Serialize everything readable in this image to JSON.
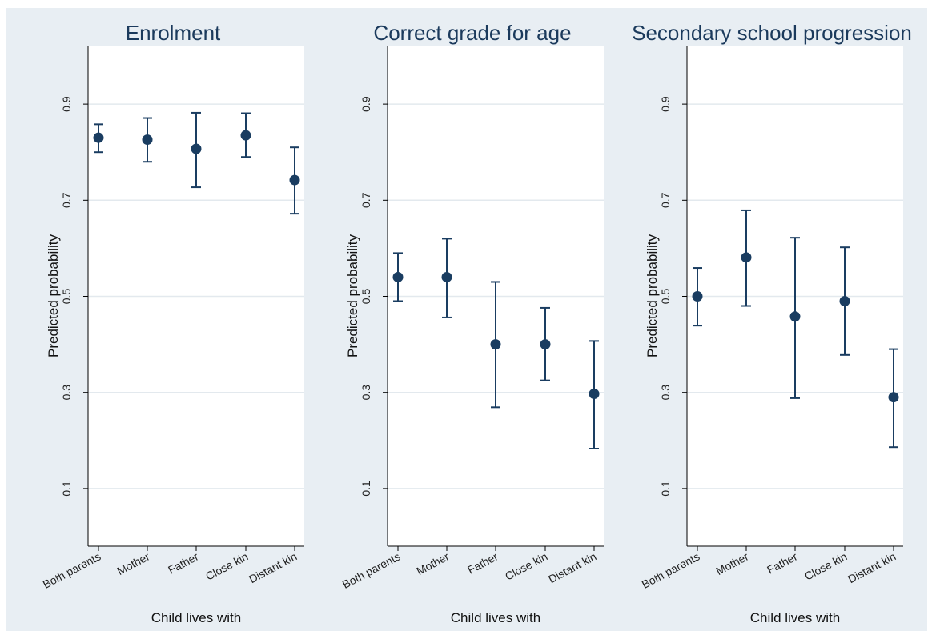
{
  "chart_data": [
    {
      "type": "scatter",
      "title": "Enrolment",
      "xlabel": "Child lives with",
      "ylabel": "Predicted probability",
      "categories": [
        "Both parents",
        "Mother",
        "Father",
        "Close kin",
        "Distant kin"
      ],
      "yticks": [
        "0.1",
        "0.3",
        "0.5",
        "0.7",
        "0.9"
      ],
      "ylim": [
        -0.02,
        1.02
      ],
      "grid": true,
      "values": [
        0.83,
        0.826,
        0.807,
        0.835,
        0.742
      ],
      "ci_low": [
        0.8,
        0.78,
        0.727,
        0.79,
        0.672
      ],
      "ci_high": [
        0.858,
        0.871,
        0.882,
        0.881,
        0.81
      ]
    },
    {
      "type": "scatter",
      "title": "Correct grade for age",
      "xlabel": "Child lives with",
      "ylabel": "Predicted probability",
      "categories": [
        "Both parents",
        "Mother",
        "Father",
        "Close kin",
        "Distant kin"
      ],
      "yticks": [
        "0.1",
        "0.3",
        "0.5",
        "0.7",
        "0.9"
      ],
      "ylim": [
        -0.02,
        1.02
      ],
      "grid": true,
      "values": [
        0.54,
        0.54,
        0.4,
        0.4,
        0.297
      ],
      "ci_low": [
        0.49,
        0.456,
        0.269,
        0.325,
        0.183
      ],
      "ci_high": [
        0.59,
        0.62,
        0.53,
        0.476,
        0.407
      ]
    },
    {
      "type": "scatter",
      "title": "Secondary school progression",
      "xlabel": "Child lives with",
      "ylabel": "Predicted probability",
      "categories": [
        "Both parents",
        "Mother",
        "Father",
        "Close kin",
        "Distant kin"
      ],
      "yticks": [
        "0.1",
        "0.3",
        "0.5",
        "0.7",
        "0.9"
      ],
      "ylim": [
        -0.02,
        1.02
      ],
      "grid": true,
      "values": [
        0.5,
        0.581,
        0.458,
        0.49,
        0.29
      ],
      "ci_low": [
        0.439,
        0.48,
        0.288,
        0.378,
        0.186
      ],
      "ci_high": [
        0.559,
        0.679,
        0.622,
        0.602,
        0.39
      ]
    }
  ],
  "colors": {
    "background": "#ffffff",
    "panel_outer": "#e8eef3",
    "plot_region": "#ffffff",
    "gridline": "#e3e9ee",
    "marker": "#1a3d61",
    "errorbar": "#1a3d61",
    "axis": "#000000",
    "title": "#1b3a5c"
  }
}
